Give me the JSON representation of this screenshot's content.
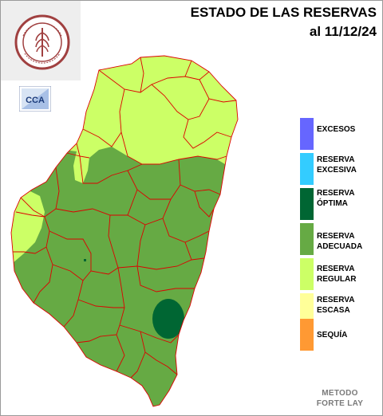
{
  "title": {
    "line1": "ESTADO DE LAS RESERVAS",
    "line2": "al 11/12/24"
  },
  "logo": {
    "badge_text": "CCA"
  },
  "legend": [
    {
      "label": "EXCESOS",
      "color": "#6666ff"
    },
    {
      "label": "RESERVA EXCESIVA",
      "color": "#33ccff"
    },
    {
      "label": "RESERVA ÓPTIMA",
      "color": "#006633"
    },
    {
      "label": "RESERVA ADECUADA",
      "color": "#66aa44"
    },
    {
      "label": "RESERVA REGULAR",
      "color": "#ccff66"
    },
    {
      "label": "RESERVA ESCASA",
      "color": "#ffff99"
    },
    {
      "label": "SEQUÍA",
      "color": "#ff9933"
    }
  ],
  "method": "METODO FORTE LAY",
  "map_colors": {
    "adecuada": "#66aa44",
    "regular": "#ccff66",
    "optima": "#006633",
    "border": "#dd0000"
  }
}
